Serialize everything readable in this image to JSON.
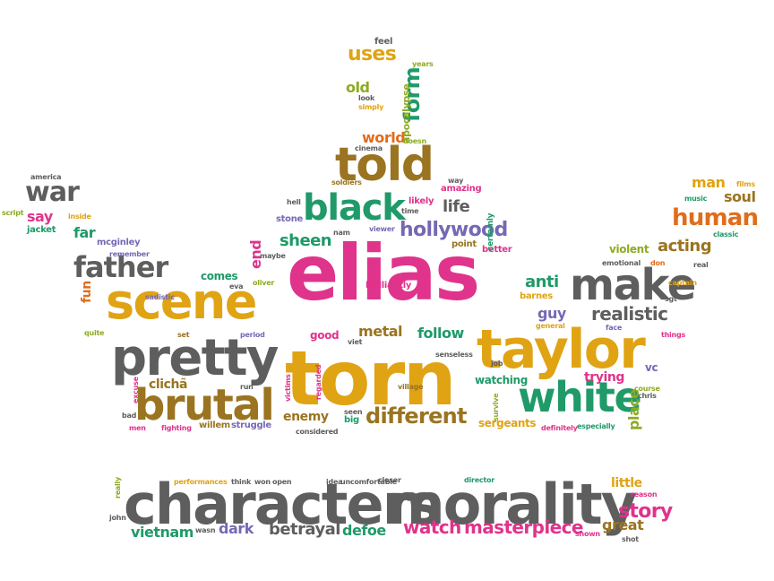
{
  "palette": {
    "gray": "#5e5e5e",
    "pink": "#e0338c",
    "gold": "#e0a313",
    "brown": "#9a7420",
    "green": "#1f9a68",
    "purple": "#7668b5",
    "orange": "#e06d1b",
    "olive": "#8dab21"
  },
  "words": [
    {
      "text": "elias",
      "color": "pink"
    },
    {
      "text": "torn",
      "color": "gold"
    },
    {
      "text": "characters",
      "color": "gray"
    },
    {
      "text": "morality",
      "color": "gray"
    },
    {
      "text": "taylor",
      "color": "gold"
    },
    {
      "text": "pretty",
      "color": "gray"
    },
    {
      "text": "scene",
      "color": "gold"
    },
    {
      "text": "brutal",
      "color": "brown"
    },
    {
      "text": "told",
      "color": "brown"
    },
    {
      "text": "make",
      "color": "gray"
    },
    {
      "text": "white",
      "color": "green"
    },
    {
      "text": "black",
      "color": "green"
    },
    {
      "text": "father",
      "color": "gray"
    },
    {
      "text": "war",
      "color": "gray"
    },
    {
      "text": "human",
      "color": "orange"
    },
    {
      "text": "different",
      "color": "brown"
    },
    {
      "text": "hollywood",
      "color": "purple"
    },
    {
      "text": "realistic",
      "color": "gray"
    },
    {
      "text": "story",
      "color": "pink"
    },
    {
      "text": "uses",
      "color": "gold"
    },
    {
      "text": "watch",
      "color": "pink"
    },
    {
      "text": "masterpiece",
      "color": "pink"
    },
    {
      "text": "betrayal",
      "color": "gray"
    },
    {
      "text": "acting",
      "color": "brown"
    },
    {
      "text": "vietnam",
      "color": "green"
    },
    {
      "text": "dark",
      "color": "purple"
    },
    {
      "text": "defoe",
      "color": "green"
    },
    {
      "text": "great",
      "color": "brown"
    },
    {
      "text": "life",
      "color": "gray"
    },
    {
      "text": "sheen",
      "color": "green"
    },
    {
      "text": "world",
      "color": "orange"
    },
    {
      "text": "form",
      "color": "green"
    },
    {
      "text": "old",
      "color": "olive"
    },
    {
      "text": "man",
      "color": "gold"
    },
    {
      "text": "soul",
      "color": "brown"
    },
    {
      "text": "anti",
      "color": "green"
    },
    {
      "text": "guy",
      "color": "purple"
    },
    {
      "text": "metal",
      "color": "brown"
    },
    {
      "text": "follow",
      "color": "green"
    },
    {
      "text": "enemy",
      "color": "brown"
    },
    {
      "text": "clichã",
      "color": "brown"
    },
    {
      "text": "watching",
      "color": "green"
    },
    {
      "text": "trying",
      "color": "pink"
    },
    {
      "text": "place",
      "color": "olive"
    },
    {
      "text": "sergeants",
      "color": "gold"
    },
    {
      "text": "comes",
      "color": "green"
    },
    {
      "text": "end",
      "color": "pink"
    },
    {
      "text": "far",
      "color": "green"
    },
    {
      "text": "say",
      "color": "pink"
    },
    {
      "text": "little",
      "color": "gold"
    },
    {
      "text": "violent",
      "color": "olive"
    },
    {
      "text": "apocalypse",
      "color": "olive"
    },
    {
      "text": "good",
      "color": "pink"
    },
    {
      "text": "vc",
      "color": "purple"
    },
    {
      "text": "fun",
      "color": "orange"
    },
    {
      "text": "mcginley",
      "color": "purple"
    },
    {
      "text": "jacket",
      "color": "green"
    },
    {
      "text": "willem",
      "color": "brown"
    },
    {
      "text": "struggle",
      "color": "purple"
    },
    {
      "text": "barnes",
      "color": "gold"
    },
    {
      "text": "big",
      "color": "green"
    },
    {
      "text": "stone",
      "color": "purple"
    },
    {
      "text": "likely",
      "color": "pink"
    },
    {
      "text": "amazing",
      "color": "pink"
    },
    {
      "text": "brilliantly",
      "color": "pink"
    },
    {
      "text": "point",
      "color": "brown"
    },
    {
      "text": "better",
      "color": "pink"
    },
    {
      "text": "certainly",
      "color": "green"
    },
    {
      "text": "feel",
      "color": "gray"
    },
    {
      "text": "years",
      "color": "olive"
    },
    {
      "text": "look",
      "color": "gray"
    },
    {
      "text": "simply",
      "color": "gold"
    },
    {
      "text": "cinema",
      "color": "gray"
    },
    {
      "text": "doesn",
      "color": "olive"
    },
    {
      "text": "america",
      "color": "gray"
    },
    {
      "text": "script",
      "color": "olive"
    },
    {
      "text": "inside",
      "color": "gold"
    },
    {
      "text": "remember",
      "color": "purple"
    },
    {
      "text": "sadistic",
      "color": "purple"
    },
    {
      "text": "oliver",
      "color": "olive"
    },
    {
      "text": "eva",
      "color": "gray"
    },
    {
      "text": "maybe",
      "color": "gray"
    },
    {
      "text": "period",
      "color": "purple"
    },
    {
      "text": "quite",
      "color": "olive"
    },
    {
      "text": "set",
      "color": "brown"
    },
    {
      "text": "soldiers",
      "color": "brown"
    },
    {
      "text": "hell",
      "color": "gray"
    },
    {
      "text": "nam",
      "color": "gray"
    },
    {
      "text": "viewer",
      "color": "purple"
    },
    {
      "text": "time",
      "color": "gray"
    },
    {
      "text": "way",
      "color": "gray"
    },
    {
      "text": "music",
      "color": "green"
    },
    {
      "text": "films",
      "color": "gold"
    },
    {
      "text": "classic",
      "color": "green"
    },
    {
      "text": "emotional",
      "color": "gray"
    },
    {
      "text": "don",
      "color": "orange"
    },
    {
      "text": "captain",
      "color": "gold"
    },
    {
      "text": "sgt",
      "color": "gray"
    },
    {
      "text": "real",
      "color": "gray"
    },
    {
      "text": "general",
      "color": "gold"
    },
    {
      "text": "face",
      "color": "purple"
    },
    {
      "text": "things",
      "color": "pink"
    },
    {
      "text": "viet",
      "color": "gray"
    },
    {
      "text": "senseless",
      "color": "gray"
    },
    {
      "text": "job",
      "color": "gray"
    },
    {
      "text": "village",
      "color": "brown"
    },
    {
      "text": "survive",
      "color": "olive"
    },
    {
      "text": "course",
      "color": "olive"
    },
    {
      "text": "chris",
      "color": "gray"
    },
    {
      "text": "definitely",
      "color": "pink"
    },
    {
      "text": "especially",
      "color": "green"
    },
    {
      "text": "excuse",
      "color": "pink"
    },
    {
      "text": "victims",
      "color": "pink"
    },
    {
      "text": "regarded",
      "color": "pink"
    },
    {
      "text": "seen",
      "color": "gray"
    },
    {
      "text": "considered",
      "color": "gray"
    },
    {
      "text": "run",
      "color": "gray"
    },
    {
      "text": "bad",
      "color": "gray"
    },
    {
      "text": "men",
      "color": "pink"
    },
    {
      "text": "fighting",
      "color": "pink"
    },
    {
      "text": "performances",
      "color": "gold"
    },
    {
      "text": "think",
      "color": "gray"
    },
    {
      "text": "won",
      "color": "gray"
    },
    {
      "text": "open",
      "color": "gray"
    },
    {
      "text": "idea",
      "color": "gray"
    },
    {
      "text": "uncomfortable",
      "color": "gray"
    },
    {
      "text": "closer",
      "color": "gray"
    },
    {
      "text": "director",
      "color": "green"
    },
    {
      "text": "reason",
      "color": "pink"
    },
    {
      "text": "really",
      "color": "olive"
    },
    {
      "text": "john",
      "color": "gray"
    },
    {
      "text": "wasn",
      "color": "gray"
    },
    {
      "text": "shown",
      "color": "pink"
    },
    {
      "text": "shot",
      "color": "gray"
    }
  ]
}
